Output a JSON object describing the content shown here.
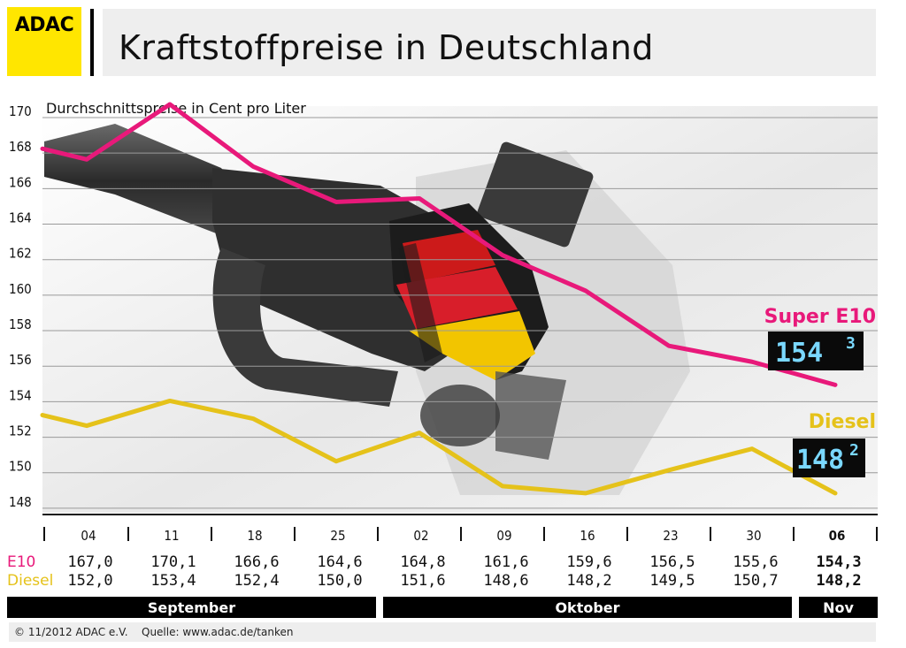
{
  "header": {
    "logo_text": "ADAC",
    "title": "Kraftstoffpreise in Deutschland"
  },
  "chart_data": {
    "type": "line",
    "ylabel": "Durchschnittspreise in Cent pro Liter",
    "ylim": [
      147,
      170
    ],
    "yticks": [
      148,
      150,
      152,
      154,
      156,
      158,
      160,
      162,
      164,
      166,
      168,
      170
    ],
    "categories": [
      "04",
      "11",
      "18",
      "25",
      "02",
      "09",
      "16",
      "23",
      "30",
      "06"
    ],
    "months": [
      {
        "name": "September",
        "start": 0,
        "end": 3
      },
      {
        "name": "Oktober",
        "start": 4,
        "end": 8
      },
      {
        "name": "Nov",
        "start": 9,
        "end": 9
      }
    ],
    "grid": true,
    "series": [
      {
        "name": "Super E10",
        "row_label": "E10",
        "color": "#e8197a",
        "values": [
          167.0,
          170.1,
          166.6,
          164.6,
          164.8,
          161.6,
          159.6,
          156.5,
          155.6,
          154.3
        ],
        "labels": [
          "167,0",
          "170,1",
          "166,6",
          "164,6",
          "164,8",
          "161,6",
          "159,6",
          "156,5",
          "155,6",
          "154,3"
        ],
        "start_value": 167.6,
        "lcd_main": "154",
        "lcd_sup": "3"
      },
      {
        "name": "Diesel",
        "row_label": "Diesel",
        "color": "#e5c21a",
        "values": [
          152.0,
          153.4,
          152.4,
          150.0,
          151.6,
          148.6,
          148.2,
          149.5,
          150.7,
          148.2
        ],
        "labels": [
          "152,0",
          "153,4",
          "152,4",
          "150,0",
          "151,6",
          "148,6",
          "148,2",
          "149,5",
          "150,7",
          "148,2"
        ],
        "start_value": 152.6,
        "lcd_main": "148",
        "lcd_sup": "2"
      }
    ]
  },
  "footer": {
    "copyright": "© 11/2012 ADAC e.V.",
    "source": "Quelle: www.adac.de/tanken"
  },
  "colors": {
    "logo": "#ffe600",
    "header_bg": "#eeeeee",
    "lcd_bg": "#0a0a0a",
    "month_bar": "#000000"
  }
}
